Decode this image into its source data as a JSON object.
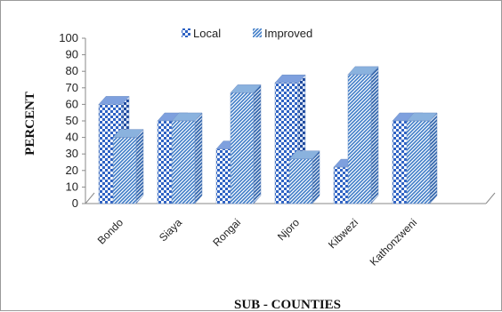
{
  "chart_data": {
    "type": "bar",
    "categories": [
      "Bondo",
      "Siaya",
      "Rongai",
      "Njoro",
      "Kibwezi",
      "Kathonzweni"
    ],
    "series": [
      {
        "name": "Local",
        "values": [
          60,
          50,
          33,
          73,
          22,
          50
        ]
      },
      {
        "name": "Improved",
        "values": [
          40,
          50,
          67,
          27,
          78,
          50
        ]
      }
    ],
    "xlabel": "SUB - COUNTIES",
    "ylabel": "PERCENT",
    "ylim": [
      0,
      100
    ],
    "yticks": [
      0,
      10,
      20,
      30,
      40,
      50,
      60,
      70,
      80,
      90,
      100
    ],
    "grid": false,
    "legend_position": "top",
    "bar_style": "3d",
    "colors": {
      "local": "#3366cc",
      "improved": "#4a86c8"
    }
  }
}
